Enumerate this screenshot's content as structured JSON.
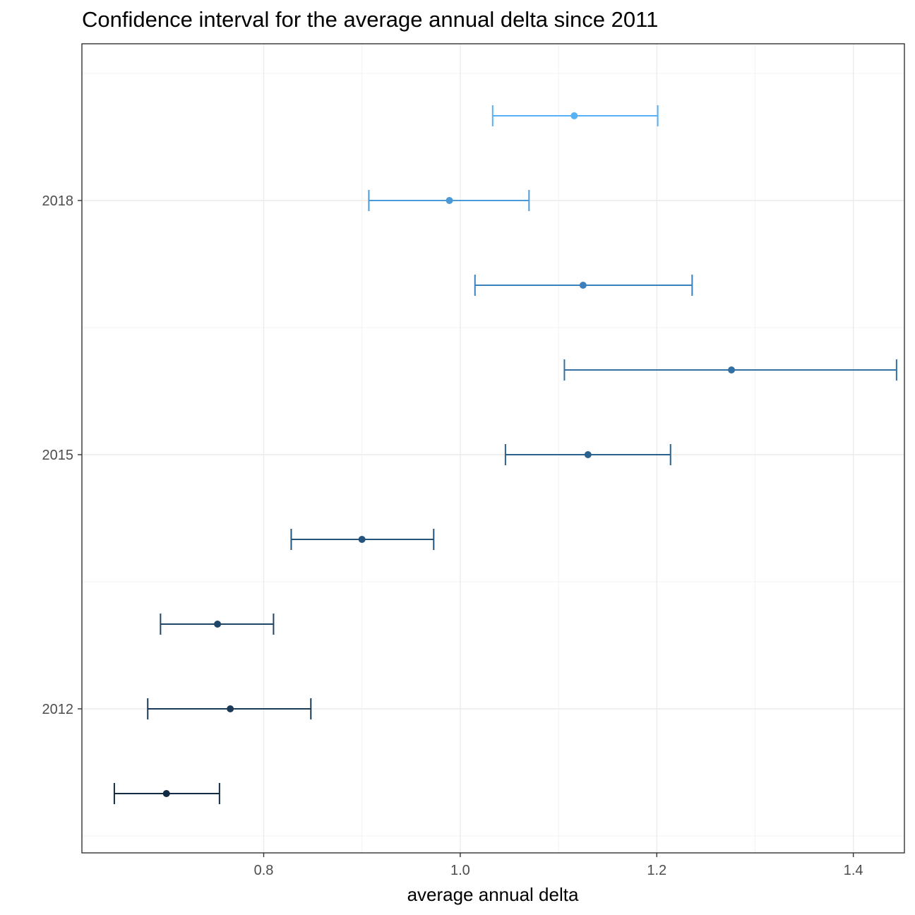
{
  "chart_data": {
    "type": "errorbar",
    "title": "Confidence interval for the average annual delta since 2011",
    "xlabel": "average annual delta",
    "ylabel": "",
    "xlim": [
      0.615,
      1.452
    ],
    "ylim": [
      2010.3,
      2019.85
    ],
    "x_ticks": [
      0.8,
      1.0,
      1.2,
      1.4
    ],
    "x_tick_labels": [
      "0.8",
      "1.0",
      "1.2",
      "1.4"
    ],
    "y_ticks": [
      2012,
      2015,
      2018
    ],
    "y_tick_labels": [
      "2012",
      "2015",
      "2018"
    ],
    "grid": true,
    "legend": "none",
    "series": [
      {
        "year": 2011,
        "mean": 0.701,
        "lower": 0.648,
        "upper": 0.755,
        "color": "#132b43"
      },
      {
        "year": 2012,
        "mean": 0.766,
        "lower": 0.682,
        "upper": 0.848,
        "color": "#1a3a58"
      },
      {
        "year": 2013,
        "mean": 0.753,
        "lower": 0.695,
        "upper": 0.81,
        "color": "#1f4668"
      },
      {
        "year": 2014,
        "mean": 0.9,
        "lower": 0.828,
        "upper": 0.973,
        "color": "#24547b"
      },
      {
        "year": 2015,
        "mean": 1.13,
        "lower": 1.046,
        "upper": 1.214,
        "color": "#2a628f"
      },
      {
        "year": 2016,
        "mean": 1.276,
        "lower": 1.106,
        "upper": 1.444,
        "color": "#3271a6"
      },
      {
        "year": 2017,
        "mean": 1.125,
        "lower": 1.015,
        "upper": 1.236,
        "color": "#3a80bc"
      },
      {
        "year": 2018,
        "mean": 0.989,
        "lower": 0.907,
        "upper": 1.07,
        "color": "#4b9ad7"
      },
      {
        "year": 2019,
        "mean": 1.116,
        "lower": 1.033,
        "upper": 1.201,
        "color": "#56b1f7"
      }
    ]
  }
}
